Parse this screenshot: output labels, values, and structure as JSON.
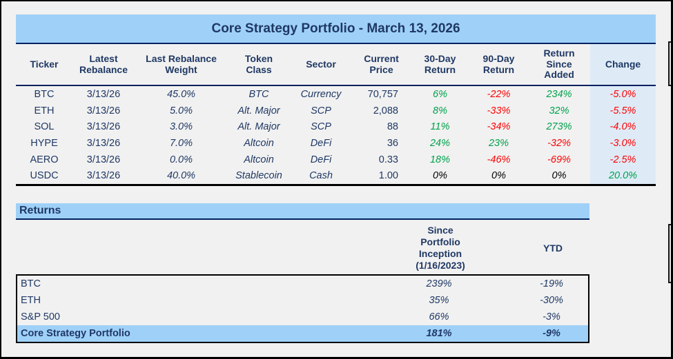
{
  "portfolio": {
    "title": "Core Strategy Portfolio - March 13, 2026",
    "columns": {
      "ticker": "Ticker",
      "latest_rebalance": "Latest\nRebalance",
      "weight": "Last Rebalance\nWeight",
      "token_class": "Token\nClass",
      "sector": "Sector",
      "price": "Current\nPrice",
      "r30": "30-Day\nReturn",
      "r90": "90-Day\nReturn",
      "rsa": "Return\nSince\nAdded",
      "change": "Change"
    },
    "rows": [
      {
        "ticker": "BTC",
        "date": "3/13/26",
        "weight": "45.0%",
        "token_class": "BTC",
        "sector": "Currency",
        "price": "70,757",
        "r30": "6%",
        "r30_cls": "c-green",
        "r90": "-22%",
        "r90_cls": "c-red",
        "rsa": "234%",
        "rsa_cls": "c-green",
        "change": "-5.0%",
        "change_cls": "c-red"
      },
      {
        "ticker": "ETH",
        "date": "3/13/26",
        "weight": "5.0%",
        "token_class": "Alt. Major",
        "sector": "SCP",
        "price": "2,088",
        "r30": "8%",
        "r30_cls": "c-green",
        "r90": "-33%",
        "r90_cls": "c-red",
        "rsa": "32%",
        "rsa_cls": "c-green",
        "change": "-5.5%",
        "change_cls": "c-red"
      },
      {
        "ticker": "SOL",
        "date": "3/13/26",
        "weight": "3.0%",
        "token_class": "Alt. Major",
        "sector": "SCP",
        "price": "88",
        "r30": "11%",
        "r30_cls": "c-green",
        "r90": "-34%",
        "r90_cls": "c-red",
        "rsa": "273%",
        "rsa_cls": "c-green",
        "change": "-4.0%",
        "change_cls": "c-red"
      },
      {
        "ticker": "HYPE",
        "date": "3/13/26",
        "weight": "7.0%",
        "token_class": "Altcoin",
        "sector": "DeFi",
        "price": "36",
        "r30": "24%",
        "r30_cls": "c-green",
        "r90": "23%",
        "r90_cls": "c-green",
        "rsa": "-32%",
        "rsa_cls": "c-red",
        "change": "-3.0%",
        "change_cls": "c-red"
      },
      {
        "ticker": "AERO",
        "date": "3/13/26",
        "weight": "0.0%",
        "token_class": "Altcoin",
        "sector": "DeFi",
        "price": "0.33",
        "r30": "18%",
        "r30_cls": "c-green",
        "r90": "-46%",
        "r90_cls": "c-red",
        "rsa": "-69%",
        "rsa_cls": "c-red",
        "change": "-2.5%",
        "change_cls": "c-red"
      },
      {
        "ticker": "USDC",
        "date": "3/13/26",
        "weight": "40.0%",
        "token_class": "Stablecoin",
        "sector": "Cash",
        "price": "1.00",
        "r30": "0%",
        "r30_cls": "c-black",
        "r90": "0%",
        "r90_cls": "c-black",
        "rsa": "0%",
        "rsa_cls": "c-black",
        "change": "20.0%",
        "change_cls": "c-green"
      }
    ]
  },
  "returns": {
    "header": "Returns",
    "columns": {
      "inception": "Since\nPortfolio\nInception\n(1/16/2023)",
      "ytd": "YTD"
    },
    "rows": [
      {
        "label": "BTC",
        "inception": "239%",
        "ytd": "-19%"
      },
      {
        "label": "ETH",
        "inception": "35%",
        "ytd": "-30%"
      },
      {
        "label": "S&P 500",
        "inception": "66%",
        "ytd": "-3%"
      },
      {
        "label": "Core Strategy Portfolio",
        "inception": "181%",
        "ytd": "-9%"
      }
    ]
  },
  "colors": {
    "accent_blue": "#9FD1F8",
    "change_column_bg": "#DEEBF7",
    "navy_text": "#1F3864",
    "border_navy": "#00205F",
    "positive_green": "#00A14B",
    "negative_red": "#FE0000"
  }
}
